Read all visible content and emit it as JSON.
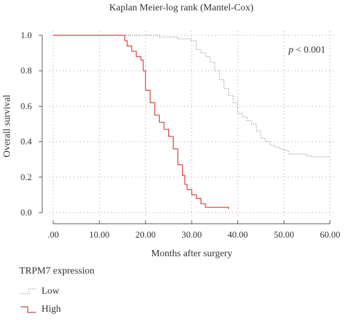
{
  "chart_data": {
    "type": "line",
    "title": "Kaplan Meier-log rank (Mantel-Cox)",
    "xlabel": "Months after surgery",
    "ylabel": "Overall survival",
    "xlim": [
      0,
      60
    ],
    "ylim": [
      0,
      1.0
    ],
    "x_ticks": [
      ".00",
      "10.00",
      "20.00",
      "30.00",
      "40.00",
      "50.00",
      "60.00"
    ],
    "y_ticks": [
      "0.0",
      "0.2",
      "0.4",
      "0.6",
      "0.8",
      "1.0"
    ],
    "grid": true,
    "annotation": {
      "italic": "p",
      "text": " < 0.001"
    },
    "legend_title": "TRPM7 expression",
    "series": [
      {
        "name": "Low",
        "color": "#666666",
        "style": "dotted",
        "points": [
          [
            0,
            1.0
          ],
          [
            21,
            1.0
          ],
          [
            23,
            0.99
          ],
          [
            27,
            0.98
          ],
          [
            30,
            0.97
          ],
          [
            31,
            0.92
          ],
          [
            32,
            0.9
          ],
          [
            33,
            0.88
          ],
          [
            34,
            0.85
          ],
          [
            35,
            0.8
          ],
          [
            36,
            0.75
          ],
          [
            37,
            0.7
          ],
          [
            38,
            0.66
          ],
          [
            39,
            0.62
          ],
          [
            40,
            0.56
          ],
          [
            41,
            0.54
          ],
          [
            42,
            0.52
          ],
          [
            43,
            0.5
          ],
          [
            44,
            0.46
          ],
          [
            45,
            0.42
          ],
          [
            46,
            0.4
          ],
          [
            47,
            0.38
          ],
          [
            48,
            0.37
          ],
          [
            49,
            0.36
          ],
          [
            50,
            0.35
          ],
          [
            51,
            0.33
          ],
          [
            53,
            0.33
          ],
          [
            55,
            0.32
          ],
          [
            56,
            0.315
          ],
          [
            60,
            0.315
          ]
        ]
      },
      {
        "name": "High",
        "color": "#e03a3e",
        "style": "solid",
        "points": [
          [
            0,
            1.0
          ],
          [
            15,
            1.0
          ],
          [
            15.5,
            0.97
          ],
          [
            16,
            0.94
          ],
          [
            17,
            0.91
          ],
          [
            18,
            0.88
          ],
          [
            19,
            0.86
          ],
          [
            19.5,
            0.8
          ],
          [
            20,
            0.69
          ],
          [
            21,
            0.62
          ],
          [
            22,
            0.55
          ],
          [
            23,
            0.51
          ],
          [
            24,
            0.47
          ],
          [
            25,
            0.43
          ],
          [
            26,
            0.36
          ],
          [
            27,
            0.27
          ],
          [
            28,
            0.21
          ],
          [
            28.5,
            0.16
          ],
          [
            29,
            0.13
          ],
          [
            30,
            0.1
          ],
          [
            31,
            0.08
          ],
          [
            32,
            0.05
          ],
          [
            33,
            0.03
          ],
          [
            38,
            0.02
          ]
        ]
      }
    ]
  }
}
